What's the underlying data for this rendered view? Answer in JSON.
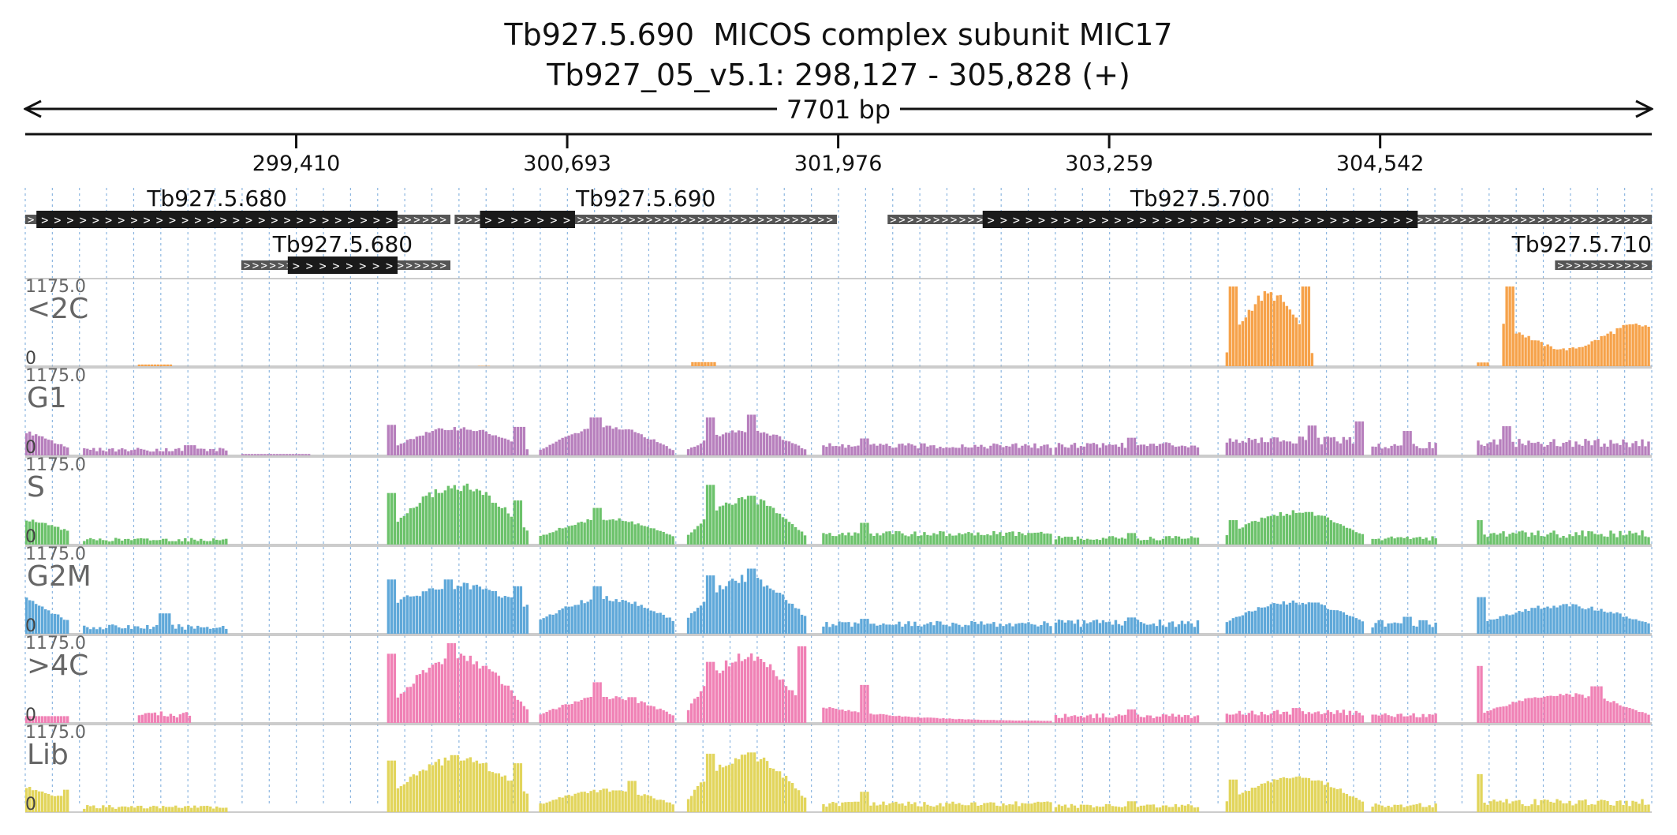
{
  "chart_data": {
    "type": "coverage-tracks",
    "title": "Tb927.5.690  MICOS complex subunit MIC17",
    "subtitle": "Tb927_05_v5.1: 298,127 - 305,828 (+)",
    "span_label": "7701 bp",
    "xlim": [
      298127,
      305828
    ],
    "ticks": [
      {
        "pos": 299410,
        "label": "299,410"
      },
      {
        "pos": 300693,
        "label": "300,693"
      },
      {
        "pos": 301976,
        "label": "301,976"
      },
      {
        "pos": 303259,
        "label": "303,259"
      },
      {
        "pos": 304542,
        "label": "304,542"
      }
    ],
    "genes": [
      {
        "name": "Tb927.5.680",
        "row": 0,
        "start": 298127,
        "end": 300140,
        "cds_start": 298180,
        "cds_end": 299890
      },
      {
        "name": "Tb927.5.690",
        "row": 0,
        "start": 300160,
        "end": 301970,
        "cds_start": 300280,
        "cds_end": 300730
      },
      {
        "name": "Tb927.5.700",
        "row": 0,
        "start": 302210,
        "end": 305828,
        "cds_start": 302660,
        "cds_end": 304720
      },
      {
        "name": "Tb927.5.680",
        "row": 1,
        "start": 299150,
        "end": 300140,
        "cds_start": 299370,
        "cds_end": 299890
      },
      {
        "name": "Tb927.5.710",
        "row": 1,
        "start": 305370,
        "end": 305828,
        "cds_start": null,
        "cds_end": null
      }
    ],
    "ylim": [
      0,
      1175.0
    ],
    "ymax_label": "1175.0",
    "ymin_label": "0",
    "tracks": [
      {
        "name": "<2C",
        "color": "#f6a24a",
        "segments": [
          {
            "start": 298660,
            "end": 298830,
            "shape": "flat",
            "base": 25,
            "amp": 0
          },
          {
            "start": 300270,
            "end": 300340,
            "shape": "flat",
            "base": 5,
            "amp": 0
          },
          {
            "start": 301280,
            "end": 301410,
            "shape": "flat",
            "base": 60,
            "amp": 0
          },
          {
            "start": 303810,
            "end": 304230,
            "shape": "hump",
            "base": 200,
            "amp": 850,
            "spikes": [
              {
                "pos": 303840,
                "h": 1175
              },
              {
                "pos": 304180,
                "h": 1175
              }
            ]
          },
          {
            "start": 305000,
            "end": 305060,
            "shape": "flat",
            "base": 55,
            "amp": 0
          },
          {
            "start": 305120,
            "end": 305828,
            "shape": "wave",
            "base": 250,
            "amp": 350,
            "spikes": [
              {
                "pos": 305150,
                "h": 1175
              }
            ]
          }
        ]
      },
      {
        "name": "G1",
        "color": "#b77fbd",
        "segments": [
          {
            "start": 298127,
            "end": 298340,
            "shape": "ramp",
            "base": 120,
            "amp": 230
          },
          {
            "start": 298400,
            "end": 299100,
            "shape": "noise",
            "base": 55,
            "amp": 60,
            "spikes": [
              {
                "pos": 298900,
                "h": 150
              }
            ]
          },
          {
            "start": 299150,
            "end": 299480,
            "shape": "flat",
            "base": 20,
            "amp": 0
          },
          {
            "start": 299840,
            "end": 300520,
            "shape": "hump",
            "base": 90,
            "amp": 310,
            "spikes": [
              {
                "pos": 299860,
                "h": 450
              },
              {
                "pos": 300460,
                "h": 420
              }
            ]
          },
          {
            "start": 300560,
            "end": 301210,
            "shape": "hump",
            "base": 80,
            "amp": 330,
            "spikes": [
              {
                "pos": 300820,
                "h": 560
              },
              {
                "pos": 300990,
                "h": 300
              }
            ]
          },
          {
            "start": 301260,
            "end": 301840,
            "shape": "hump",
            "base": 90,
            "amp": 280,
            "spikes": [
              {
                "pos": 301360,
                "h": 560
              },
              {
                "pos": 301560,
                "h": 600
              }
            ]
          },
          {
            "start": 301900,
            "end": 303000,
            "shape": "noise",
            "base": 100,
            "amp": 80,
            "spikes": [
              {
                "pos": 302090,
                "h": 250
              }
            ]
          },
          {
            "start": 303000,
            "end": 303700,
            "shape": "noise",
            "base": 110,
            "amp": 90,
            "spikes": [
              {
                "pos": 303360,
                "h": 260
              }
            ]
          },
          {
            "start": 303810,
            "end": 304470,
            "shape": "noise",
            "base": 160,
            "amp": 120,
            "spikes": [
              {
                "pos": 304210,
                "h": 440
              },
              {
                "pos": 304440,
                "h": 500
              }
            ]
          },
          {
            "start": 304500,
            "end": 304820,
            "shape": "noise",
            "base": 100,
            "amp": 100,
            "spikes": [
              {
                "pos": 304660,
                "h": 360
              }
            ]
          },
          {
            "start": 305000,
            "end": 305828,
            "shape": "noise",
            "base": 120,
            "amp": 130,
            "spikes": [
              {
                "pos": 305130,
                "h": 430
              }
            ]
          }
        ]
      },
      {
        "name": "S",
        "color": "#6cc26b",
        "segments": [
          {
            "start": 298127,
            "end": 298340,
            "shape": "ramp",
            "base": 200,
            "amp": 180
          },
          {
            "start": 298400,
            "end": 299100,
            "shape": "noise",
            "base": 45,
            "amp": 55
          },
          {
            "start": 299840,
            "end": 300520,
            "shape": "hump",
            "base": 200,
            "amp": 650,
            "spikes": [
              {
                "pos": 299860,
                "h": 760
              },
              {
                "pos": 300450,
                "h": 650
              }
            ]
          },
          {
            "start": 300560,
            "end": 301210,
            "shape": "hump",
            "base": 120,
            "amp": 250,
            "spikes": [
              {
                "pos": 300830,
                "h": 540
              },
              {
                "pos": 300990,
                "h": 250
              }
            ]
          },
          {
            "start": 301260,
            "end": 301840,
            "shape": "hump",
            "base": 140,
            "amp": 520,
            "spikes": [
              {
                "pos": 301360,
                "h": 880
              },
              {
                "pos": 301560,
                "h": 720
              }
            ]
          },
          {
            "start": 301900,
            "end": 303000,
            "shape": "noise",
            "base": 120,
            "amp": 80,
            "spikes": [
              {
                "pos": 302090,
                "h": 320
              }
            ]
          },
          {
            "start": 303000,
            "end": 303700,
            "shape": "noise",
            "base": 60,
            "amp": 70,
            "spikes": [
              {
                "pos": 303360,
                "h": 170
              }
            ]
          },
          {
            "start": 303810,
            "end": 304470,
            "shape": "hump",
            "base": 150,
            "amp": 320,
            "spikes": [
              {
                "pos": 303840,
                "h": 360
              },
              {
                "pos": 304200,
                "h": 480
              }
            ]
          },
          {
            "start": 304500,
            "end": 304820,
            "shape": "noise",
            "base": 60,
            "amp": 70
          },
          {
            "start": 305000,
            "end": 305828,
            "shape": "noise",
            "base": 100,
            "amp": 110,
            "spikes": [
              {
                "pos": 305000,
                "h": 360
              }
            ]
          }
        ]
      },
      {
        "name": "G2M",
        "color": "#5fa8d9",
        "segments": [
          {
            "start": 298127,
            "end": 298340,
            "shape": "ramp",
            "base": 200,
            "amp": 300
          },
          {
            "start": 298400,
            "end": 299100,
            "shape": "noise",
            "base": 60,
            "amp": 80,
            "spikes": [
              {
                "pos": 298780,
                "h": 300
              }
            ]
          },
          {
            "start": 299840,
            "end": 300520,
            "shape": "hump",
            "base": 400,
            "amp": 300,
            "spikes": [
              {
                "pos": 299860,
                "h": 800
              },
              {
                "pos": 300120,
                "h": 800
              },
              {
                "pos": 300450,
                "h": 700
              }
            ]
          },
          {
            "start": 300560,
            "end": 301210,
            "shape": "hump",
            "base": 200,
            "amp": 320,
            "spikes": [
              {
                "pos": 300830,
                "h": 700
              },
              {
                "pos": 300990,
                "h": 420
              }
            ]
          },
          {
            "start": 301260,
            "end": 301840,
            "shape": "hump",
            "base": 250,
            "amp": 560,
            "spikes": [
              {
                "pos": 301360,
                "h": 860
              },
              {
                "pos": 301560,
                "h": 960
              }
            ]
          },
          {
            "start": 301900,
            "end": 303000,
            "shape": "noise",
            "base": 100,
            "amp": 90,
            "spikes": [
              {
                "pos": 302090,
                "h": 220
              }
            ]
          },
          {
            "start": 303000,
            "end": 303700,
            "shape": "noise",
            "base": 100,
            "amp": 110,
            "spikes": [
              {
                "pos": 303360,
                "h": 240
              }
            ]
          },
          {
            "start": 303810,
            "end": 304470,
            "shape": "hump",
            "base": 180,
            "amp": 280,
            "spikes": [
              {
                "pos": 303840,
                "h": 180
              },
              {
                "pos": 304220,
                "h": 460
              }
            ]
          },
          {
            "start": 304500,
            "end": 304820,
            "shape": "noise",
            "base": 90,
            "amp": 110,
            "spikes": [
              {
                "pos": 304660,
                "h": 250
              }
            ]
          },
          {
            "start": 305000,
            "end": 305828,
            "shape": "hump",
            "base": 150,
            "amp": 260,
            "spikes": [
              {
                "pos": 305010,
                "h": 540
              }
            ]
          }
        ]
      },
      {
        "name": ">4C",
        "color": "#f081b5",
        "segments": [
          {
            "start": 298127,
            "end": 298340,
            "shape": "flat",
            "base": 100,
            "amp": 0
          },
          {
            "start": 298660,
            "end": 298920,
            "shape": "noise",
            "base": 80,
            "amp": 90
          },
          {
            "start": 299840,
            "end": 300520,
            "shape": "hump",
            "base": 200,
            "amp": 760,
            "spikes": [
              {
                "pos": 299860,
                "h": 1020
              },
              {
                "pos": 300140,
                "h": 1175
              }
            ]
          },
          {
            "start": 300560,
            "end": 301210,
            "shape": "hump",
            "base": 120,
            "amp": 260,
            "spikes": [
              {
                "pos": 300830,
                "h": 600
              },
              {
                "pos": 300990,
                "h": 380
              }
            ]
          },
          {
            "start": 301260,
            "end": 301840,
            "shape": "hump",
            "base": 200,
            "amp": 780,
            "spikes": [
              {
                "pos": 301360,
                "h": 900
              },
              {
                "pos": 301800,
                "h": 1130
              }
            ]
          },
          {
            "start": 301900,
            "end": 303000,
            "shape": "decay",
            "base": 20,
            "amp": 220,
            "spikes": [
              {
                "pos": 302090,
                "h": 560
              }
            ]
          },
          {
            "start": 303000,
            "end": 303700,
            "shape": "noise",
            "base": 70,
            "amp": 70,
            "spikes": [
              {
                "pos": 303360,
                "h": 200
              }
            ]
          },
          {
            "start": 303810,
            "end": 304470,
            "shape": "noise",
            "base": 100,
            "amp": 100,
            "spikes": [
              {
                "pos": 304140,
                "h": 220
              }
            ]
          },
          {
            "start": 304500,
            "end": 304820,
            "shape": "noise",
            "base": 80,
            "amp": 70
          },
          {
            "start": 305000,
            "end": 305828,
            "shape": "hump",
            "base": 120,
            "amp": 300,
            "spikes": [
              {
                "pos": 305000,
                "h": 840
              },
              {
                "pos": 305560,
                "h": 540
              }
            ]
          }
        ]
      },
      {
        "name": "Lib",
        "color": "#e2d55c",
        "segments": [
          {
            "start": 298127,
            "end": 298340,
            "shape": "ramp",
            "base": 200,
            "amp": 160,
            "spikes": [
              {
                "pos": 298320,
                "h": 330
              }
            ]
          },
          {
            "start": 298400,
            "end": 299100,
            "shape": "noise",
            "base": 45,
            "amp": 60
          },
          {
            "start": 299840,
            "end": 300520,
            "shape": "hump",
            "base": 260,
            "amp": 520,
            "spikes": [
              {
                "pos": 299860,
                "h": 760
              },
              {
                "pos": 300150,
                "h": 840
              },
              {
                "pos": 300450,
                "h": 720
              }
            ]
          },
          {
            "start": 300560,
            "end": 301210,
            "shape": "hump",
            "base": 120,
            "amp": 200,
            "spikes": [
              {
                "pos": 300990,
                "h": 460
              }
            ]
          },
          {
            "start": 301260,
            "end": 301840,
            "shape": "hump",
            "base": 200,
            "amp": 620,
            "spikes": [
              {
                "pos": 301360,
                "h": 860
              },
              {
                "pos": 301560,
                "h": 880
              }
            ]
          },
          {
            "start": 301900,
            "end": 303000,
            "shape": "noise",
            "base": 80,
            "amp": 80,
            "spikes": [
              {
                "pos": 302090,
                "h": 300
              }
            ]
          },
          {
            "start": 303000,
            "end": 303700,
            "shape": "noise",
            "base": 60,
            "amp": 60,
            "spikes": [
              {
                "pos": 303360,
                "h": 160
              }
            ]
          },
          {
            "start": 303810,
            "end": 304470,
            "shape": "hump",
            "base": 150,
            "amp": 360,
            "spikes": [
              {
                "pos": 303840,
                "h": 480
              }
            ]
          },
          {
            "start": 304500,
            "end": 304820,
            "shape": "noise",
            "base": 70,
            "amp": 70
          },
          {
            "start": 305000,
            "end": 305828,
            "shape": "noise",
            "base": 90,
            "amp": 110,
            "spikes": [
              {
                "pos": 305000,
                "h": 560
              }
            ]
          }
        ]
      }
    ]
  }
}
